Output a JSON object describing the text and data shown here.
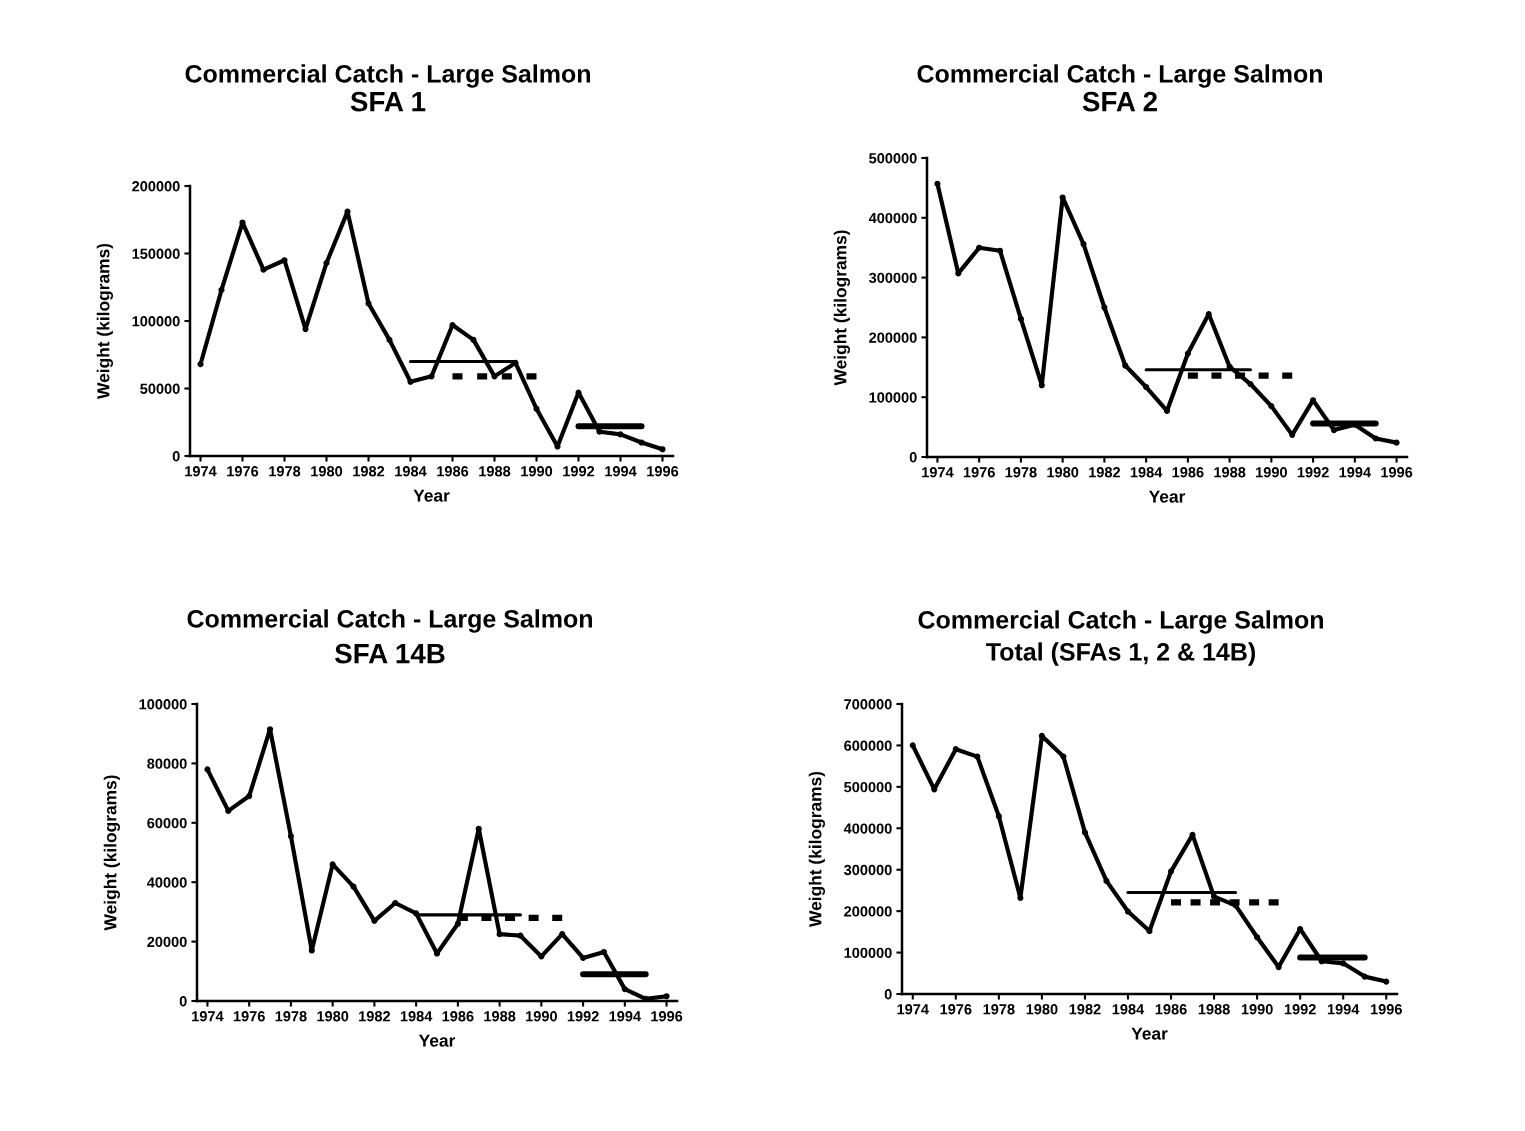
{
  "chart_data": [
    {
      "type": "line",
      "title": "Commercial Catch - Large Salmon",
      "subtitle": "SFA 1",
      "xlabel": "Year",
      "ylabel": "Weight (kilograms)",
      "x": [
        1974,
        1975,
        1976,
        1977,
        1978,
        1979,
        1980,
        1981,
        1982,
        1983,
        1984,
        1985,
        1986,
        1987,
        1988,
        1989,
        1990,
        1991,
        1992,
        1993,
        1994,
        1995,
        1996
      ],
      "xlim": [
        1973.5,
        1996.5
      ],
      "xticks": [
        1974,
        1976,
        1978,
        1980,
        1982,
        1984,
        1986,
        1988,
        1990,
        1992,
        1994,
        1996
      ],
      "ylim": [
        0,
        200000
      ],
      "yticks": [
        0,
        50000,
        100000,
        150000,
        200000
      ],
      "series": [
        {
          "color": "#000000",
          "marker": "circle",
          "line_style": "solid",
          "values": [
            68000,
            123000,
            173000,
            138000,
            145000,
            94000,
            143000,
            181000,
            113000,
            86000,
            55000,
            59000,
            97000,
            86000,
            59000,
            69000,
            35000,
            7000,
            47000,
            18000,
            16000,
            10000,
            5000
          ]
        },
        {
          "color": "#000000",
          "line_style": "solid",
          "x": [
            1984,
            1989
          ],
          "values": [
            70000,
            70000
          ]
        },
        {
          "color": "#000000",
          "line_style": "dotted",
          "x": [
            1986,
            1990
          ],
          "values": [
            59000,
            59000
          ]
        },
        {
          "color": "#000000",
          "line_style": "solid",
          "x": [
            1992,
            1995
          ],
          "values": [
            22000,
            22000
          ]
        }
      ]
    },
    {
      "type": "line",
      "title": "Commercial Catch - Large Salmon",
      "subtitle": "SFA 2",
      "xlabel": "Year",
      "ylabel": "Weight (kilograms)",
      "x": [
        1974,
        1975,
        1976,
        1977,
        1978,
        1979,
        1980,
        1981,
        1982,
        1983,
        1984,
        1985,
        1986,
        1987,
        1988,
        1989,
        1990,
        1991,
        1992,
        1993,
        1994,
        1995,
        1996
      ],
      "xlim": [
        1973.5,
        1996.5
      ],
      "xticks": [
        1974,
        1976,
        1978,
        1980,
        1982,
        1984,
        1986,
        1988,
        1990,
        1992,
        1994,
        1996
      ],
      "ylim": [
        0,
        500000
      ],
      "yticks": [
        0,
        100000,
        200000,
        300000,
        400000,
        500000
      ],
      "series": [
        {
          "color": "#000000",
          "marker": "circle",
          "line_style": "solid",
          "values": [
            457000,
            307000,
            350000,
            345000,
            231000,
            120000,
            434000,
            356000,
            250000,
            153000,
            117000,
            77000,
            173000,
            239000,
            151000,
            122000,
            85000,
            37000,
            95000,
            45000,
            54000,
            31000,
            24000
          ]
        },
        {
          "color": "#000000",
          "line_style": "solid",
          "x": [
            1984,
            1989
          ],
          "values": [
            146000,
            146000
          ]
        },
        {
          "color": "#000000",
          "line_style": "dotted",
          "x": [
            1986,
            1991
          ],
          "values": [
            136000,
            136000
          ]
        },
        {
          "color": "#000000",
          "line_style": "solid",
          "x": [
            1992,
            1995
          ],
          "values": [
            56000,
            56000
          ]
        }
      ]
    },
    {
      "type": "line",
      "title": "Commercial Catch - Large Salmon",
      "subtitle": "SFA 14B",
      "xlabel": "Year",
      "ylabel": "Weight (kilograms)",
      "x": [
        1974,
        1975,
        1976,
        1977,
        1978,
        1979,
        1980,
        1981,
        1982,
        1983,
        1984,
        1985,
        1986,
        1987,
        1988,
        1989,
        1990,
        1991,
        1992,
        1993,
        1994,
        1995,
        1996
      ],
      "xlim": [
        1973.5,
        1996.5
      ],
      "xticks": [
        1974,
        1976,
        1978,
        1980,
        1982,
        1984,
        1986,
        1988,
        1990,
        1992,
        1994,
        1996
      ],
      "ylim": [
        0,
        100000
      ],
      "yticks": [
        0,
        20000,
        40000,
        60000,
        80000,
        100000
      ],
      "series": [
        {
          "color": "#000000",
          "marker": "circle",
          "line_style": "solid",
          "values": [
            78000,
            64000,
            69000,
            91500,
            55500,
            17000,
            46000,
            38500,
            27000,
            33000,
            29500,
            16000,
            26000,
            58000,
            22500,
            22000,
            15000,
            22500,
            14500,
            16500,
            4000,
            700,
            1600
          ]
        },
        {
          "color": "#000000",
          "line_style": "solid",
          "x": [
            1984,
            1989
          ],
          "values": [
            29000,
            29000
          ]
        },
        {
          "color": "#000000",
          "line_style": "dotted",
          "x": [
            1986,
            1991
          ],
          "values": [
            28000,
            28000
          ]
        },
        {
          "color": "#000000",
          "line_style": "solid",
          "x": [
            1992,
            1995
          ],
          "values": [
            9000,
            9000
          ]
        }
      ]
    },
    {
      "type": "line",
      "title": "Commercial Catch - Large Salmon",
      "subtitle": "Total (SFAs 1, 2 & 14B)",
      "xlabel": "Year",
      "ylabel": "Weight (kilograms)",
      "x": [
        1974,
        1975,
        1976,
        1977,
        1978,
        1979,
        1980,
        1981,
        1982,
        1983,
        1984,
        1985,
        1986,
        1987,
        1988,
        1989,
        1990,
        1991,
        1992,
        1993,
        1994,
        1995,
        1996
      ],
      "xlim": [
        1973.5,
        1996.5
      ],
      "xticks": [
        1974,
        1976,
        1978,
        1980,
        1982,
        1984,
        1986,
        1988,
        1990,
        1992,
        1994,
        1996
      ],
      "ylim": [
        0,
        700000
      ],
      "yticks": [
        0,
        100000,
        200000,
        300000,
        400000,
        500000,
        600000,
        700000
      ],
      "series": [
        {
          "color": "#000000",
          "marker": "circle",
          "line_style": "solid",
          "values": [
            600000,
            494000,
            591000,
            573000,
            429000,
            232000,
            623000,
            573000,
            390000,
            273000,
            199000,
            152000,
            296000,
            384000,
            235000,
            214000,
            137000,
            65000,
            157000,
            79000,
            74000,
            42000,
            30000
          ]
        },
        {
          "color": "#000000",
          "line_style": "solid",
          "x": [
            1984,
            1989
          ],
          "values": [
            245000,
            245000
          ]
        },
        {
          "color": "#000000",
          "line_style": "dotted",
          "x": [
            1986,
            1991
          ],
          "values": [
            221000,
            221000
          ]
        },
        {
          "color": "#000000",
          "line_style": "solid",
          "x": [
            1992,
            1995
          ],
          "values": [
            88000,
            88000
          ]
        }
      ]
    }
  ]
}
